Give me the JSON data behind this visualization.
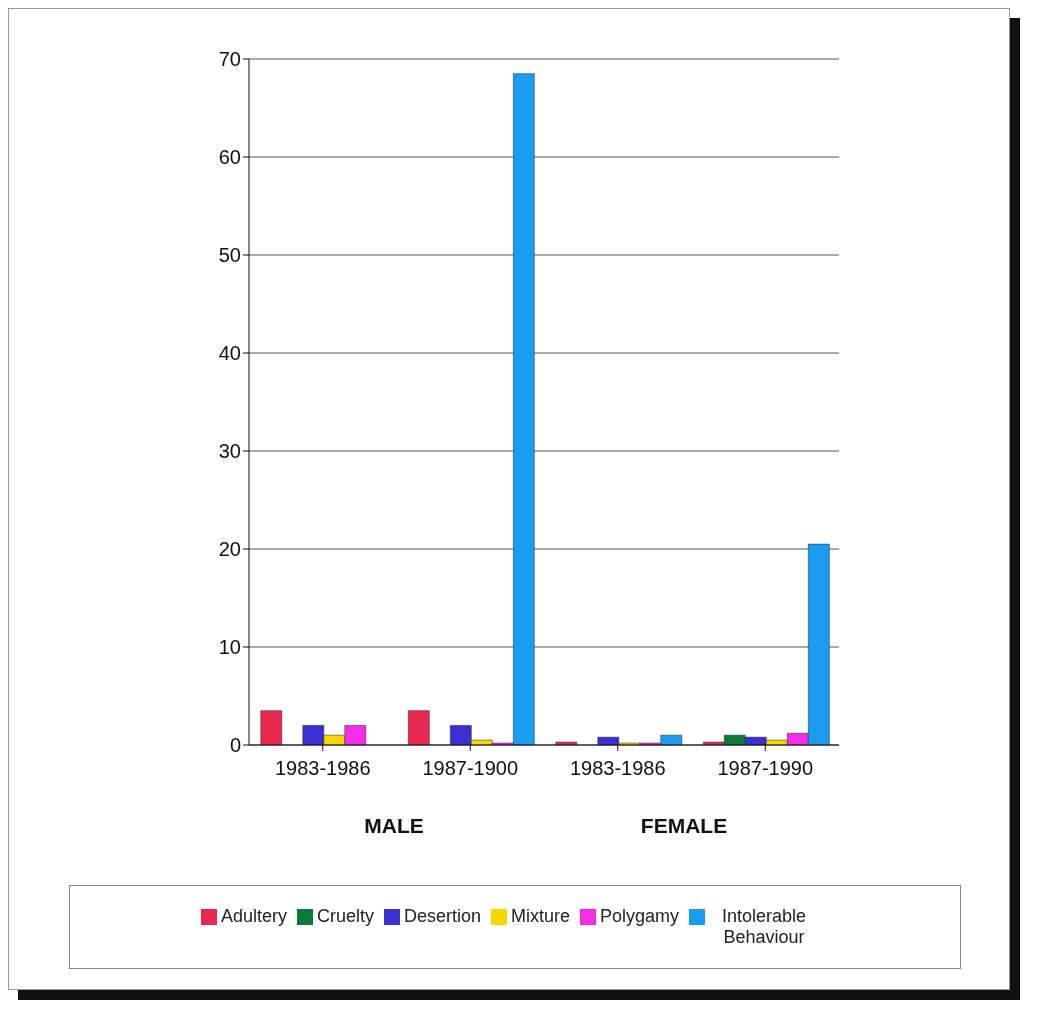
{
  "chart_data": {
    "type": "bar",
    "categories": [
      "1983-1986",
      "1987-1900",
      "1983-1986",
      "1987-1990"
    ],
    "series": [
      {
        "name": "Adultery",
        "color": "#e8294f",
        "values": [
          3.5,
          3.5,
          0.3,
          0.3
        ]
      },
      {
        "name": "Cruelty",
        "color": "#0a7a3a",
        "values": [
          0,
          0,
          0,
          1
        ]
      },
      {
        "name": "Desertion",
        "color": "#3a2fd0",
        "values": [
          2,
          2,
          0.8,
          0.8
        ]
      },
      {
        "name": "Mixture",
        "color": "#f5d800",
        "values": [
          1,
          0.5,
          0.2,
          0.5
        ]
      },
      {
        "name": "Polygamy",
        "color": "#f52ee6",
        "values": [
          2,
          0.2,
          0.2,
          1.2
        ]
      },
      {
        "name": "Intolerable Behaviour",
        "color": "#1a9cf0",
        "values": [
          0,
          68.5,
          1,
          20.5
        ]
      }
    ],
    "annotations": [
      "MALE",
      "FEMALE"
    ],
    "ylim": [
      0,
      70
    ],
    "yticks": [
      0,
      10,
      20,
      30,
      40,
      50,
      60,
      70
    ],
    "grid": "y",
    "legend": "bottom"
  }
}
